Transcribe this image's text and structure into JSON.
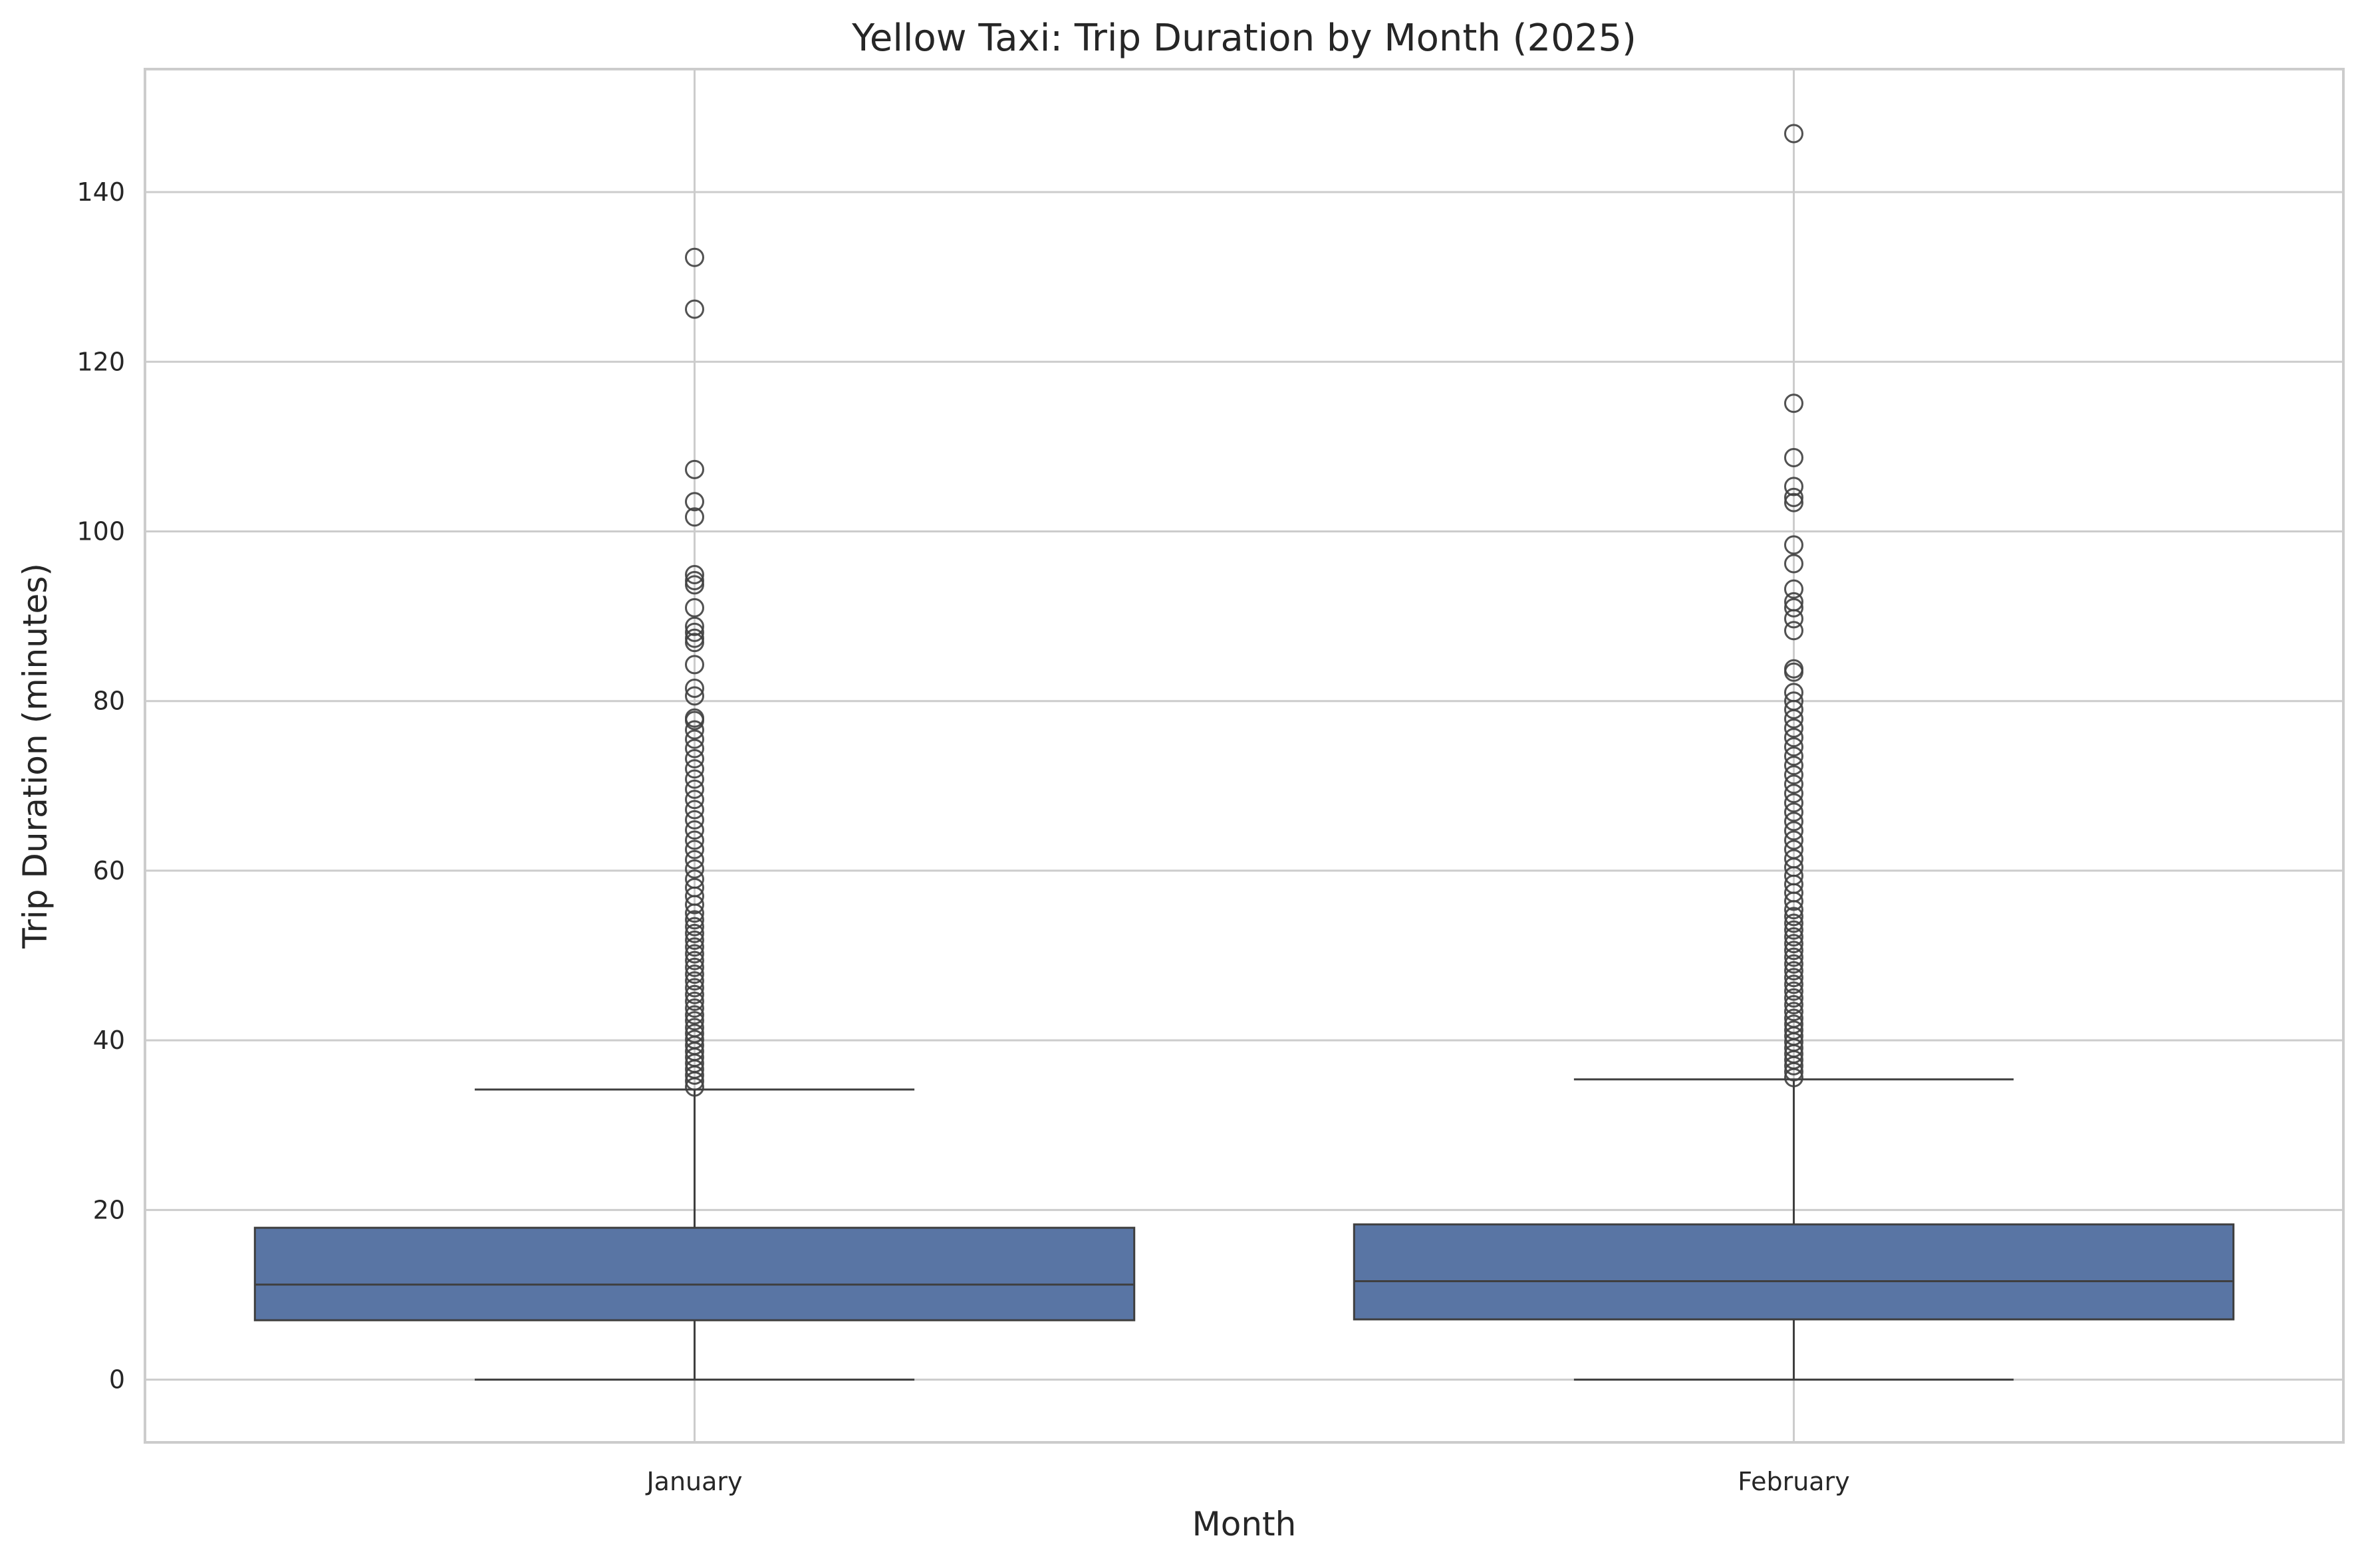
{
  "chart_data": {
    "type": "box",
    "title": "Yellow Taxi: Trip Duration by Month (2025)",
    "xlabel": "Month",
    "ylabel": "Trip Duration (minutes)",
    "categories": [
      "January",
      "February"
    ],
    "ylim": [
      -7.4,
      154.5
    ],
    "yticks": [
      0,
      20,
      40,
      60,
      80,
      100,
      120,
      140
    ],
    "ytick_labels": [
      "0",
      "20",
      "40",
      "60",
      "80",
      "100",
      "120",
      "140"
    ],
    "grid": true,
    "box_color": "#5975a4",
    "line_color": "#3f3f3f",
    "boxes": [
      {
        "category": "January",
        "whisker_low": 0,
        "q1": 7.0,
        "median": 11.2,
        "q3": 17.9,
        "whisker_high": 34.2,
        "outliers": [
          34.5,
          35.2,
          35.9,
          36.6,
          37.3,
          38.0,
          38.7,
          39.4,
          40.1,
          40.8,
          41.5,
          42.3,
          43.0,
          43.8,
          44.6,
          45.4,
          46.2,
          47.0,
          47.8,
          48.6,
          49.4,
          50.2,
          51.0,
          51.8,
          52.6,
          53.4,
          54.2,
          55.0,
          56.0,
          57.0,
          58.0,
          59.0,
          60.2,
          61.3,
          62.5,
          63.6,
          64.8,
          66.0,
          67.2,
          68.4,
          69.6,
          70.8,
          72.0,
          73.2,
          74.4,
          75.5,
          76.6,
          77.7,
          78.0,
          80.6,
          81.5,
          84.3,
          86.9,
          87.4,
          88.1,
          88.8,
          91.0,
          93.7,
          94.2,
          94.9,
          101.7,
          103.5,
          107.3,
          126.2,
          132.3
        ]
      },
      {
        "category": "February",
        "whisker_low": 0,
        "q1": 7.1,
        "median": 11.6,
        "q3": 18.3,
        "whisker_high": 35.4,
        "outliers": [
          35.6,
          36.3,
          37.0,
          37.7,
          38.4,
          39.1,
          39.8,
          40.5,
          41.2,
          41.9,
          42.6,
          43.4,
          44.2,
          45.0,
          45.8,
          46.6,
          47.4,
          48.2,
          49.0,
          49.8,
          50.6,
          51.4,
          52.2,
          53.0,
          53.8,
          54.6,
          55.4,
          56.4,
          57.4,
          58.4,
          59.4,
          60.4,
          61.4,
          62.5,
          63.6,
          64.7,
          65.8,
          66.9,
          68.0,
          69.1,
          70.2,
          71.3,
          72.4,
          73.5,
          74.6,
          75.7,
          76.8,
          77.9,
          79.0,
          80.0,
          81.0,
          83.4,
          83.8,
          88.3,
          89.7,
          91.0,
          91.7,
          93.2,
          96.2,
          98.4,
          103.4,
          104.0,
          105.3,
          108.7,
          115.1,
          146.9
        ]
      }
    ]
  }
}
